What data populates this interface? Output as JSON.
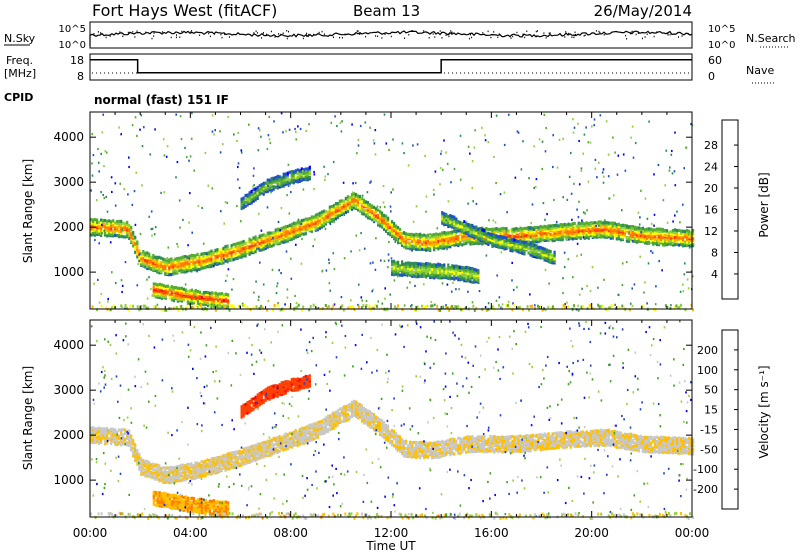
{
  "header": {
    "station": "Fort Hays West (fitACF)",
    "beam": "Beam 13",
    "date": "26/May/2014"
  },
  "noise_panel": {
    "left_label": "N.Sky",
    "left_ticks": [
      "10^5",
      "10^0"
    ],
    "right_label": "N.Search",
    "right_ticks": [
      "10^5",
      "10^0"
    ]
  },
  "freq_panel": {
    "left_label_line1": "Freq.",
    "left_label_line2": "[MHz]",
    "left_ticks": [
      "18",
      "8"
    ],
    "right_label": "Nave",
    "right_ticks": [
      "60",
      "0"
    ],
    "steps": [
      {
        "start": 0.0,
        "end": 1.9,
        "freq": 15.8
      },
      {
        "start": 1.9,
        "end": 14.0,
        "freq": 10.8
      },
      {
        "start": 14.0,
        "end": 24.0,
        "freq": 15.8
      }
    ]
  },
  "cpid": {
    "label": "CPID",
    "text": "normal (fast) 151 IF"
  },
  "time_axis": {
    "label": "Time UT",
    "ticks": [
      "00:00",
      "04:00",
      "08:00",
      "12:00",
      "16:00",
      "20:00",
      "00:00"
    ]
  },
  "chart_data": [
    {
      "type": "heatmap",
      "ylabel": "Slant Range [km]",
      "xlabel": "Time UT",
      "xlim": [
        0,
        24
      ],
      "ylim": [
        180,
        4560
      ],
      "yticks": [
        "1000",
        "2000",
        "3000",
        "4000"
      ],
      "colorbar": {
        "label": "Power [dB]",
        "ticks": [
          "4",
          "8",
          "12",
          "16",
          "20",
          "24",
          "28"
        ],
        "colors": [
          "#0000ff",
          "#1e50c8",
          "#2e8b57",
          "#55aa33",
          "#8fd13a",
          "#ffff00",
          "#ffb400",
          "#ff7800",
          "#ff3c00",
          "#ff0000"
        ]
      },
      "bands": [
        {
          "t": [
            0.0,
            1.5,
            2.0,
            3.0,
            4.5,
            6.0,
            7.5,
            9.0,
            10.5,
            11.5,
            12.5,
            13.5,
            14.0,
            15.0,
            17.0,
            19.0,
            20.5,
            22.0,
            24.0
          ],
          "r": [
            2000,
            1950,
            1300,
            1100,
            1250,
            1500,
            1800,
            2100,
            2600,
            2200,
            1700,
            1650,
            1700,
            1800,
            1800,
            1900,
            1950,
            1800,
            1750
          ],
          "width": 170,
          "level": 0.85
        },
        {
          "t": [
            14.0,
            16.0,
            17.5,
            18.5
          ],
          "r": [
            2200,
            1700,
            1500,
            1300
          ],
          "width": 120,
          "level": 0.5
        },
        {
          "t": [
            12.0,
            13.0,
            14.5,
            15.5
          ],
          "r": [
            1100,
            1050,
            1000,
            900
          ],
          "width": 150,
          "level": 0.55
        },
        {
          "t": [
            6.0,
            7.0,
            8.0,
            8.8
          ],
          "r": [
            2500,
            2900,
            3100,
            3200
          ],
          "width": 120,
          "level": 0.45
        },
        {
          "t": [
            2.5,
            4.0,
            5.5
          ],
          "r": [
            600,
            450,
            350
          ],
          "width": 150,
          "level": 0.95
        }
      ]
    },
    {
      "type": "heatmap",
      "ylabel": "Slant Range [km]",
      "xlabel": "Time UT",
      "xlim": [
        0,
        24
      ],
      "ylim": [
        180,
        4560
      ],
      "yticks": [
        "1000",
        "2000",
        "3000",
        "4000"
      ],
      "colorbar": {
        "label": "Velocity [m s⁻¹]",
        "ticks": [
          "200",
          "100",
          "50",
          "15",
          "-15",
          "-50",
          "-100",
          "-200"
        ],
        "colors": [
          "#0000ff",
          "#2040d0",
          "#40a020",
          "#9ad040",
          "#c8c8c8",
          "#ffc000",
          "#ff8000",
          "#ff4000",
          "#ff0000"
        ]
      },
      "bands": [
        {
          "t": [
            0.0,
            1.5,
            2.0,
            3.0,
            4.5,
            6.0,
            7.5,
            9.0,
            10.5,
            11.5,
            12.5,
            13.5,
            14.0,
            15.0,
            17.0,
            19.0,
            20.5,
            22.0,
            24.0
          ],
          "r": [
            2000,
            1950,
            1300,
            1100,
            1250,
            1500,
            1800,
            2100,
            2600,
            2200,
            1700,
            1650,
            1700,
            1800,
            1800,
            1900,
            1950,
            1800,
            1750
          ],
          "width": 170,
          "level": 0.55
        },
        {
          "t": [
            6.0,
            7.0,
            8.0,
            8.8
          ],
          "r": [
            2500,
            2900,
            3100,
            3200
          ],
          "width": 120,
          "level": 0.9
        },
        {
          "t": [
            2.5,
            4.0,
            5.5
          ],
          "r": [
            600,
            450,
            350
          ],
          "width": 150,
          "level": 0.68
        }
      ]
    }
  ]
}
